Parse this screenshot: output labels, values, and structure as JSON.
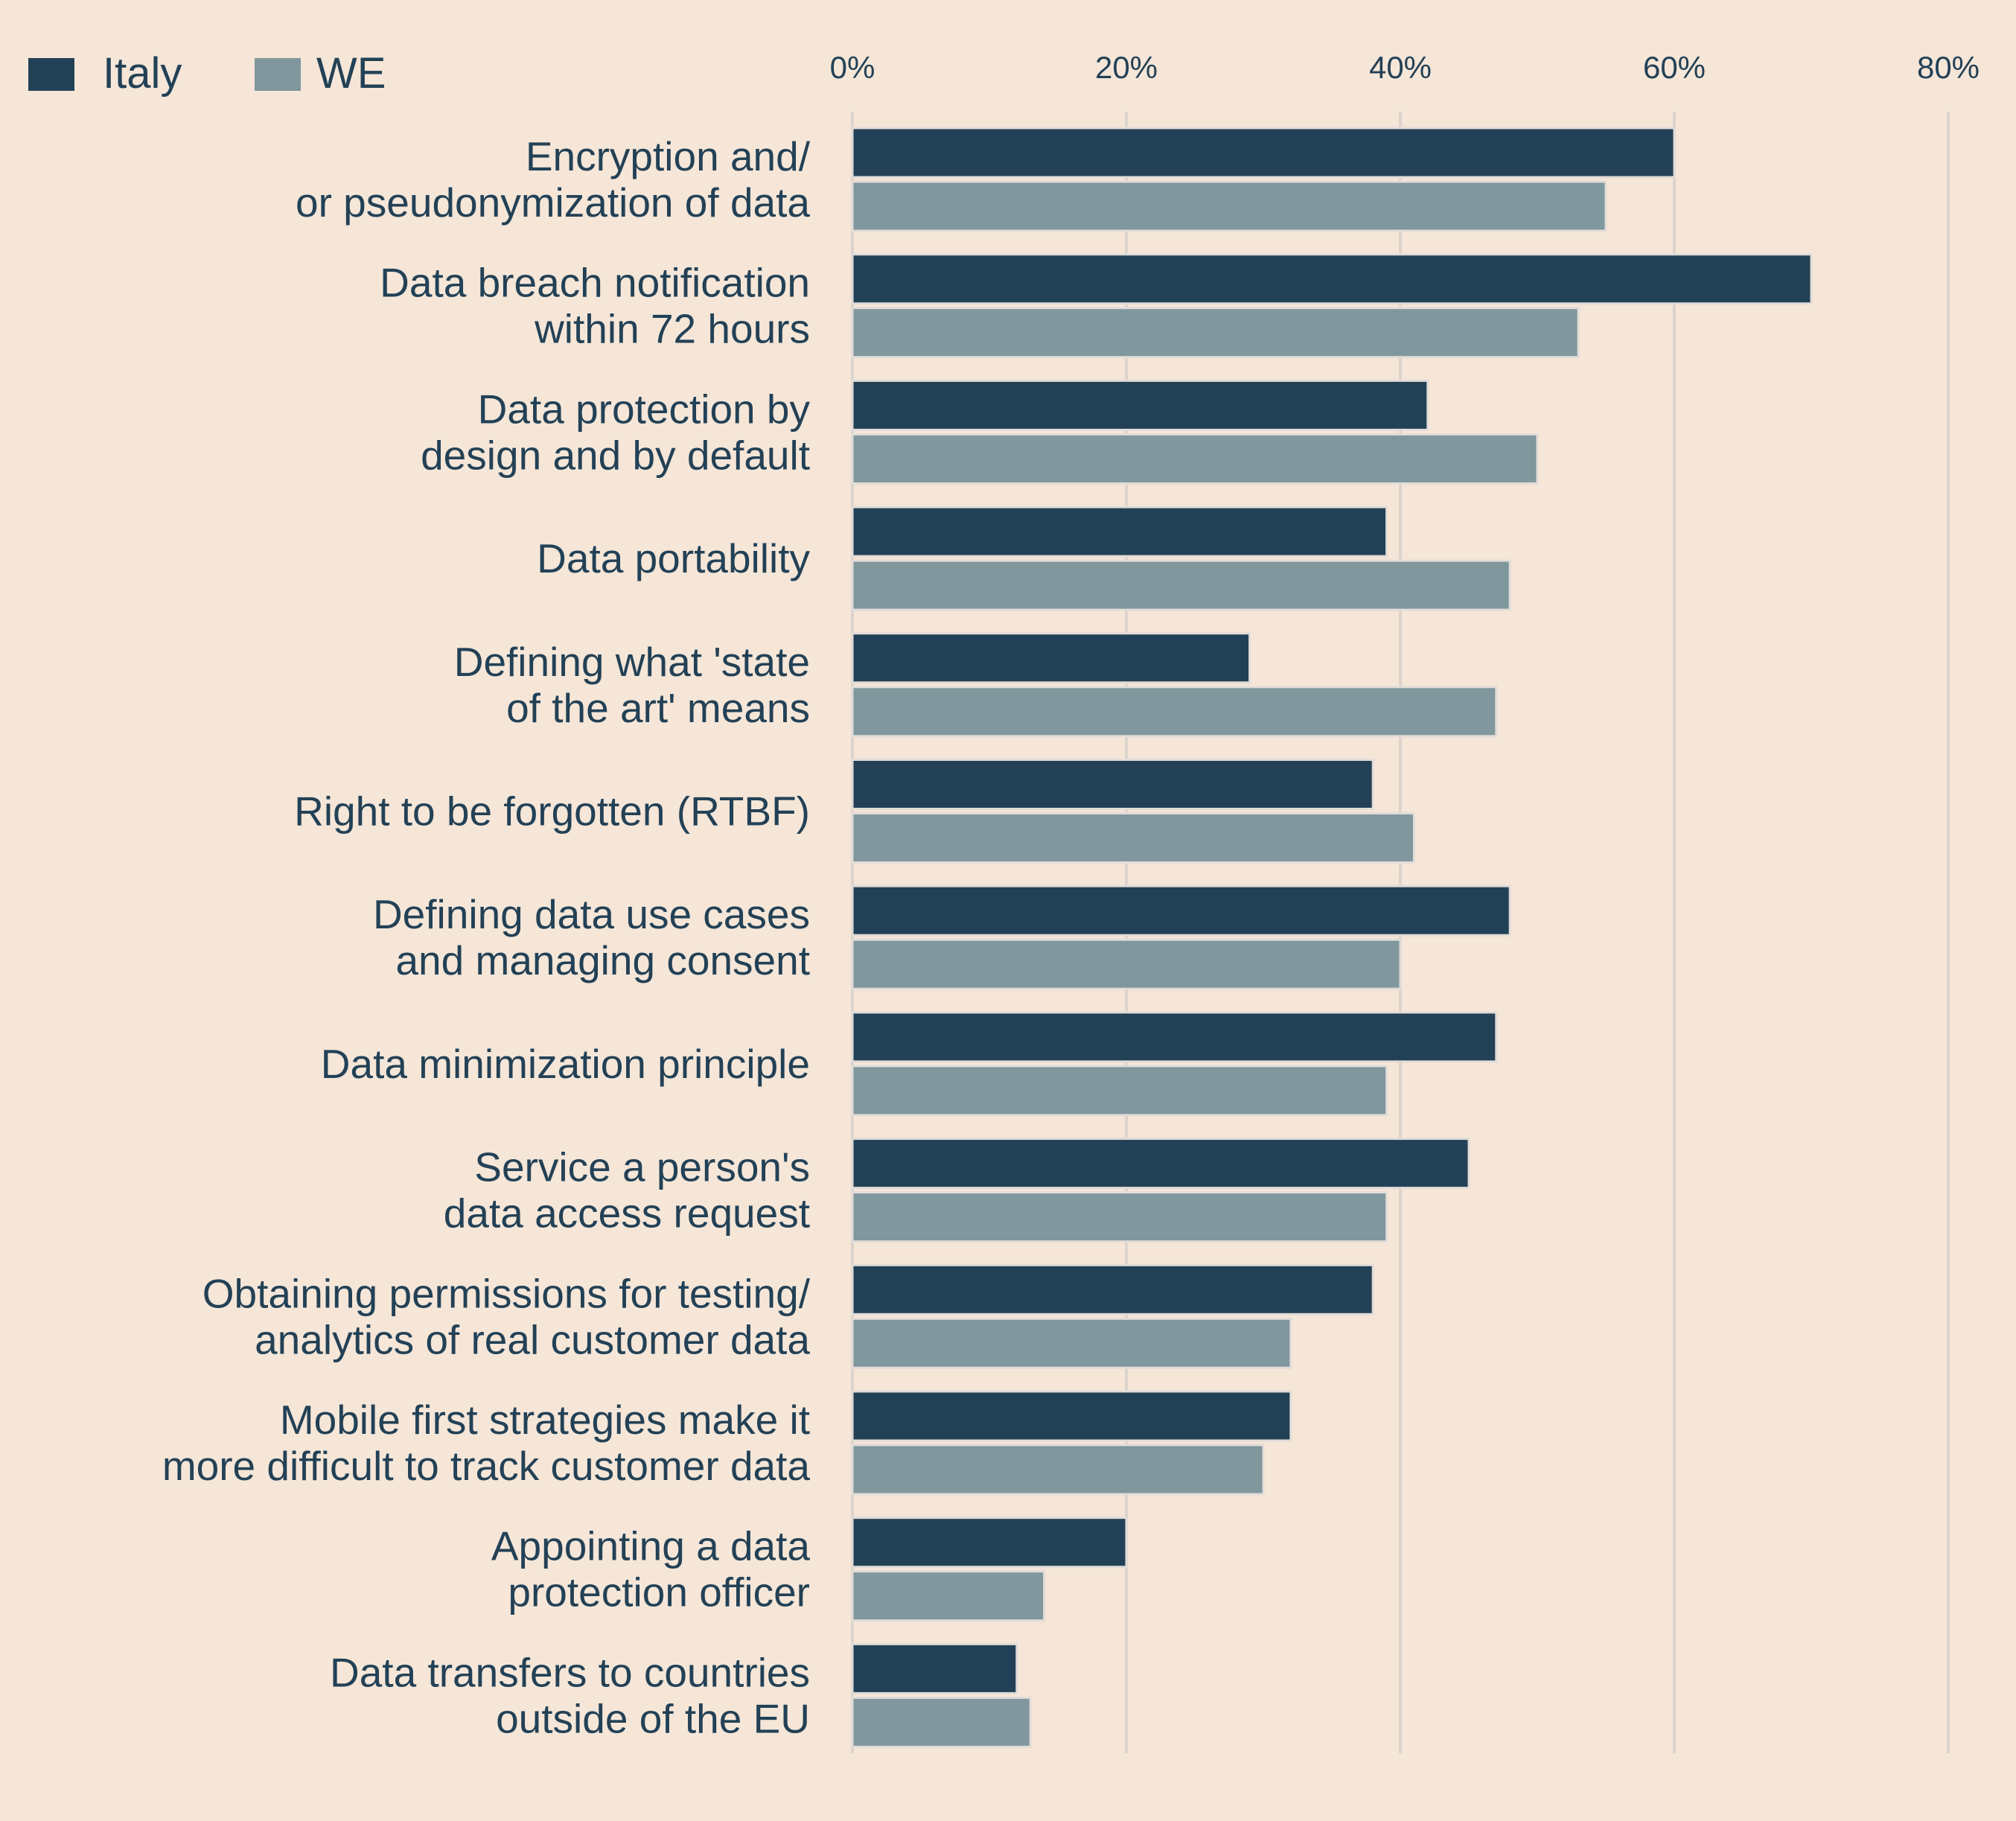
{
  "chart_data": {
    "type": "bar",
    "orientation": "horizontal",
    "title": "",
    "xlabel": "",
    "ylabel": "",
    "xlim": [
      0,
      80
    ],
    "x_ticks": [
      "0%",
      "20%",
      "40%",
      "60%",
      "80%"
    ],
    "x_tick_values": [
      0,
      20,
      40,
      60,
      80
    ],
    "grid": true,
    "legend_position": "top-left",
    "categories": [
      [
        "Encryption and/",
        "or pseudonymization of data"
      ],
      [
        "Data breach notification",
        "within 72 hours"
      ],
      [
        "Data protection by",
        "design and by default"
      ],
      [
        "Data portability"
      ],
      [
        "Defining what 'state",
        "of the art' means"
      ],
      [
        "Right to be forgotten (RTBF)"
      ],
      [
        "Defining data use cases",
        "and managing consent"
      ],
      [
        "Data minimization principle"
      ],
      [
        "Service a person's",
        "data access request"
      ],
      [
        "Obtaining permissions for testing/",
        "analytics of real customer data"
      ],
      [
        "Mobile first strategies make it",
        "more difficult to track customer data"
      ],
      [
        "Appointing a data",
        "protection officer"
      ],
      [
        "Data transfers to countries",
        "outside of the EU"
      ]
    ],
    "series": [
      {
        "name": "Italy",
        "color": "#234156",
        "values": [
          60,
          70,
          42,
          39,
          29,
          38,
          48,
          47,
          45,
          38,
          32,
          20,
          12
        ]
      },
      {
        "name": "WE",
        "color": "#7f979d",
        "values": [
          55,
          53,
          50,
          48,
          47,
          41,
          40,
          39,
          39,
          32,
          30,
          14,
          13
        ]
      }
    ]
  }
}
